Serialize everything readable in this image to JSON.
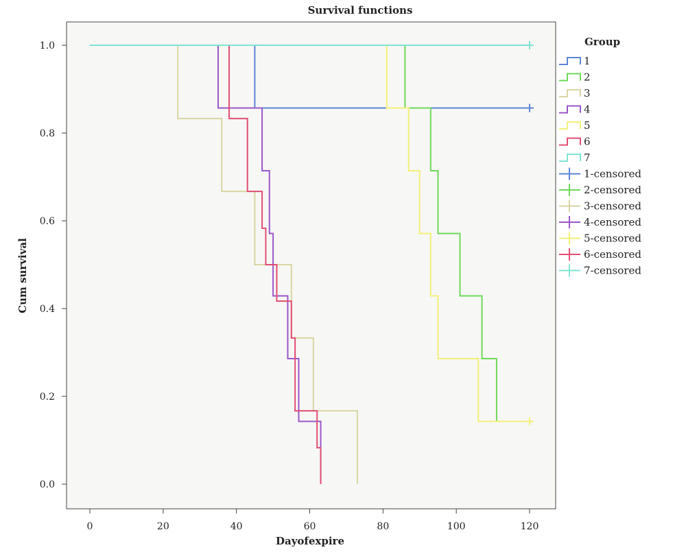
{
  "chart_data": {
    "type": "line",
    "subtype": "kaplan-meier-step",
    "title": "Survival functions",
    "xlabel": "Dayofexpire",
    "ylabel": "Cum survival",
    "xlim": [
      -5,
      125
    ],
    "ylim": [
      -0.05,
      1.05
    ],
    "xticks": [
      0,
      20,
      40,
      60,
      80,
      100,
      120
    ],
    "xtick_labels": [
      "0",
      "20",
      "40",
      "60",
      "80",
      "100",
      "120"
    ],
    "yticks": [
      0.0,
      0.2,
      0.4,
      0.6,
      0.8,
      1.0
    ],
    "ytick_labels": [
      "0.0",
      "0.2",
      "0.4",
      "0.6",
      "0.8",
      "1.0"
    ],
    "grid": false,
    "plot_background": "#f7f7f5",
    "legend": {
      "title": "Group",
      "placement": "right"
    },
    "series": [
      {
        "name": "1",
        "color": "#5b86d6",
        "steps": [
          [
            0,
            1.0
          ],
          [
            45,
            0.857
          ],
          [
            120,
            0.857
          ]
        ],
        "censored": [
          [
            120,
            0.857
          ]
        ]
      },
      {
        "name": "2",
        "color": "#6fd85a",
        "steps": [
          [
            0,
            1.0
          ],
          [
            86,
            0.857
          ],
          [
            93,
            0.714
          ],
          [
            95,
            0.571
          ],
          [
            101,
            0.429
          ],
          [
            107,
            0.286
          ],
          [
            111,
            0.143
          ],
          [
            120,
            0.143
          ]
        ],
        "censored": [
          [
            120,
            0.143
          ]
        ]
      },
      {
        "name": "3",
        "color": "#d9d6a4",
        "steps": [
          [
            0,
            1.0
          ],
          [
            24,
            0.833
          ],
          [
            36,
            0.667
          ],
          [
            45,
            0.5
          ],
          [
            55,
            0.333
          ],
          [
            61,
            0.167
          ],
          [
            73,
            0.0
          ]
        ],
        "censored": []
      },
      {
        "name": "4",
        "color": "#9a57c9",
        "steps": [
          [
            0,
            1.0
          ],
          [
            35,
            0.857
          ],
          [
            47,
            0.714
          ],
          [
            49,
            0.571
          ],
          [
            50,
            0.429
          ],
          [
            54,
            0.286
          ],
          [
            57,
            0.143
          ],
          [
            63,
            0.0
          ]
        ],
        "censored": []
      },
      {
        "name": "5",
        "color": "#f3ef7a",
        "steps": [
          [
            0,
            1.0
          ],
          [
            81,
            0.857
          ],
          [
            87,
            0.714
          ],
          [
            90,
            0.571
          ],
          [
            93,
            0.429
          ],
          [
            95,
            0.286
          ],
          [
            106,
            0.143
          ],
          [
            120,
            0.143
          ]
        ],
        "censored": [
          [
            120,
            0.143
          ]
        ]
      },
      {
        "name": "6",
        "color": "#e24d74",
        "steps": [
          [
            0,
            1.0
          ],
          [
            38,
            0.833
          ],
          [
            43,
            0.667
          ],
          [
            47,
            0.583
          ],
          [
            48,
            0.5
          ],
          [
            51,
            0.417
          ],
          [
            55,
            0.333
          ],
          [
            56,
            0.167
          ],
          [
            62,
            0.083
          ],
          [
            63,
            0.0
          ]
        ],
        "censored": []
      },
      {
        "name": "7",
        "color": "#7fe3d2",
        "steps": [
          [
            0,
            1.0
          ],
          [
            120,
            1.0
          ]
        ],
        "censored": [
          [
            120,
            1.0
          ]
        ]
      }
    ],
    "legend_entries": [
      {
        "label": "1",
        "kind": "line",
        "color": "#5b86d6"
      },
      {
        "label": "2",
        "kind": "line",
        "color": "#6fd85a"
      },
      {
        "label": "3",
        "kind": "line",
        "color": "#d9d6a4"
      },
      {
        "label": "4",
        "kind": "line",
        "color": "#9a57c9"
      },
      {
        "label": "5",
        "kind": "line",
        "color": "#f3ef7a"
      },
      {
        "label": "6",
        "kind": "line",
        "color": "#e24d74"
      },
      {
        "label": "7",
        "kind": "line",
        "color": "#7fe3d2"
      },
      {
        "label": "1-censored",
        "kind": "censor",
        "color": "#5b86d6"
      },
      {
        "label": "2-censored",
        "kind": "censor",
        "color": "#6fd85a"
      },
      {
        "label": "3-censored",
        "kind": "censor",
        "color": "#d9d6a4"
      },
      {
        "label": "4-censored",
        "kind": "censor",
        "color": "#9a57c9"
      },
      {
        "label": "5-censored",
        "kind": "censor",
        "color": "#f3ef7a"
      },
      {
        "label": "6-censored",
        "kind": "censor",
        "color": "#e24d74"
      },
      {
        "label": "7-censored",
        "kind": "censor",
        "color": "#7fe3d2"
      }
    ]
  }
}
